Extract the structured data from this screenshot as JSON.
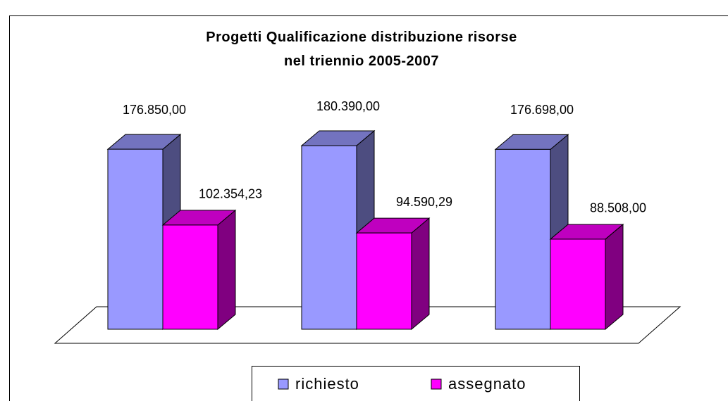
{
  "chart_data": {
    "type": "bar3d",
    "title": "Progetti Qualificazione distribuzione risorse\nnel triennio 2005-2007",
    "categories": [
      null,
      null,
      null
    ],
    "series": [
      {
        "name": "richiesto",
        "color": "#9999ff",
        "values": [
          176850,
          180390,
          176698
        ],
        "value_labels": [
          "176.850,00",
          "180.390,00",
          "176.698,00"
        ]
      },
      {
        "name": "assegnato",
        "color": "#ff00ff",
        "values": [
          102354.23,
          94590.29,
          88508
        ],
        "value_labels": [
          "102.354,23",
          "94.590,29",
          "88.508,00"
        ]
      }
    ],
    "legend": "bottom"
  }
}
